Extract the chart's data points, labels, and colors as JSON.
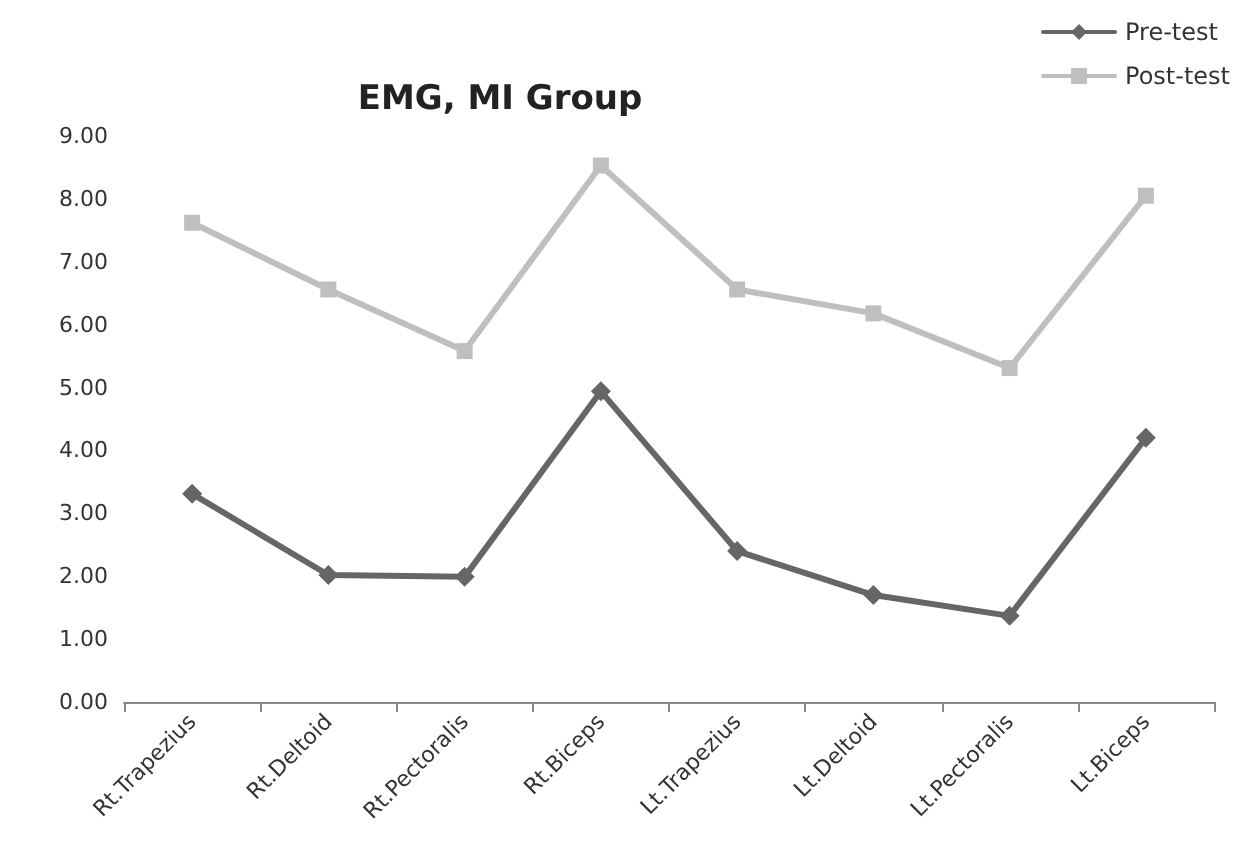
{
  "chart_data": {
    "type": "line",
    "title": "EMG, MI Group",
    "categories": [
      "Rt.Trapezius",
      "Rt.Deltoid",
      "Rt.Pectoralis",
      "Rt.Biceps",
      "Lt.Trapezius",
      "Lt.Deltoid",
      "Lt.Pectoralis",
      "Lt.Biceps"
    ],
    "series": [
      {
        "name": "Pre-test",
        "color": "#666666",
        "marker": "diamond",
        "values": [
          3.31,
          2.02,
          1.99,
          4.94,
          2.4,
          1.7,
          1.37,
          4.2
        ]
      },
      {
        "name": "Post-test",
        "color": "#bfbfbf",
        "marker": "square",
        "values": [
          7.62,
          6.56,
          5.58,
          8.53,
          6.56,
          6.18,
          5.31,
          8.05
        ]
      }
    ],
    "ylim": [
      0,
      9
    ],
    "yticks": [
      {
        "value": 0,
        "label": "0.00"
      },
      {
        "value": 1,
        "label": "1.00"
      },
      {
        "value": 2,
        "label": "2.00"
      },
      {
        "value": 3,
        "label": "3.00"
      },
      {
        "value": 4,
        "label": "4.00"
      },
      {
        "value": 5,
        "label": "5.00"
      },
      {
        "value": 6,
        "label": "6.00"
      },
      {
        "value": 7,
        "label": "7.00"
      },
      {
        "value": 8,
        "label": "8.00"
      },
      {
        "value": 9,
        "label": "9.00"
      }
    ],
    "grid": false,
    "legend": "top right",
    "line_style": "solid"
  }
}
